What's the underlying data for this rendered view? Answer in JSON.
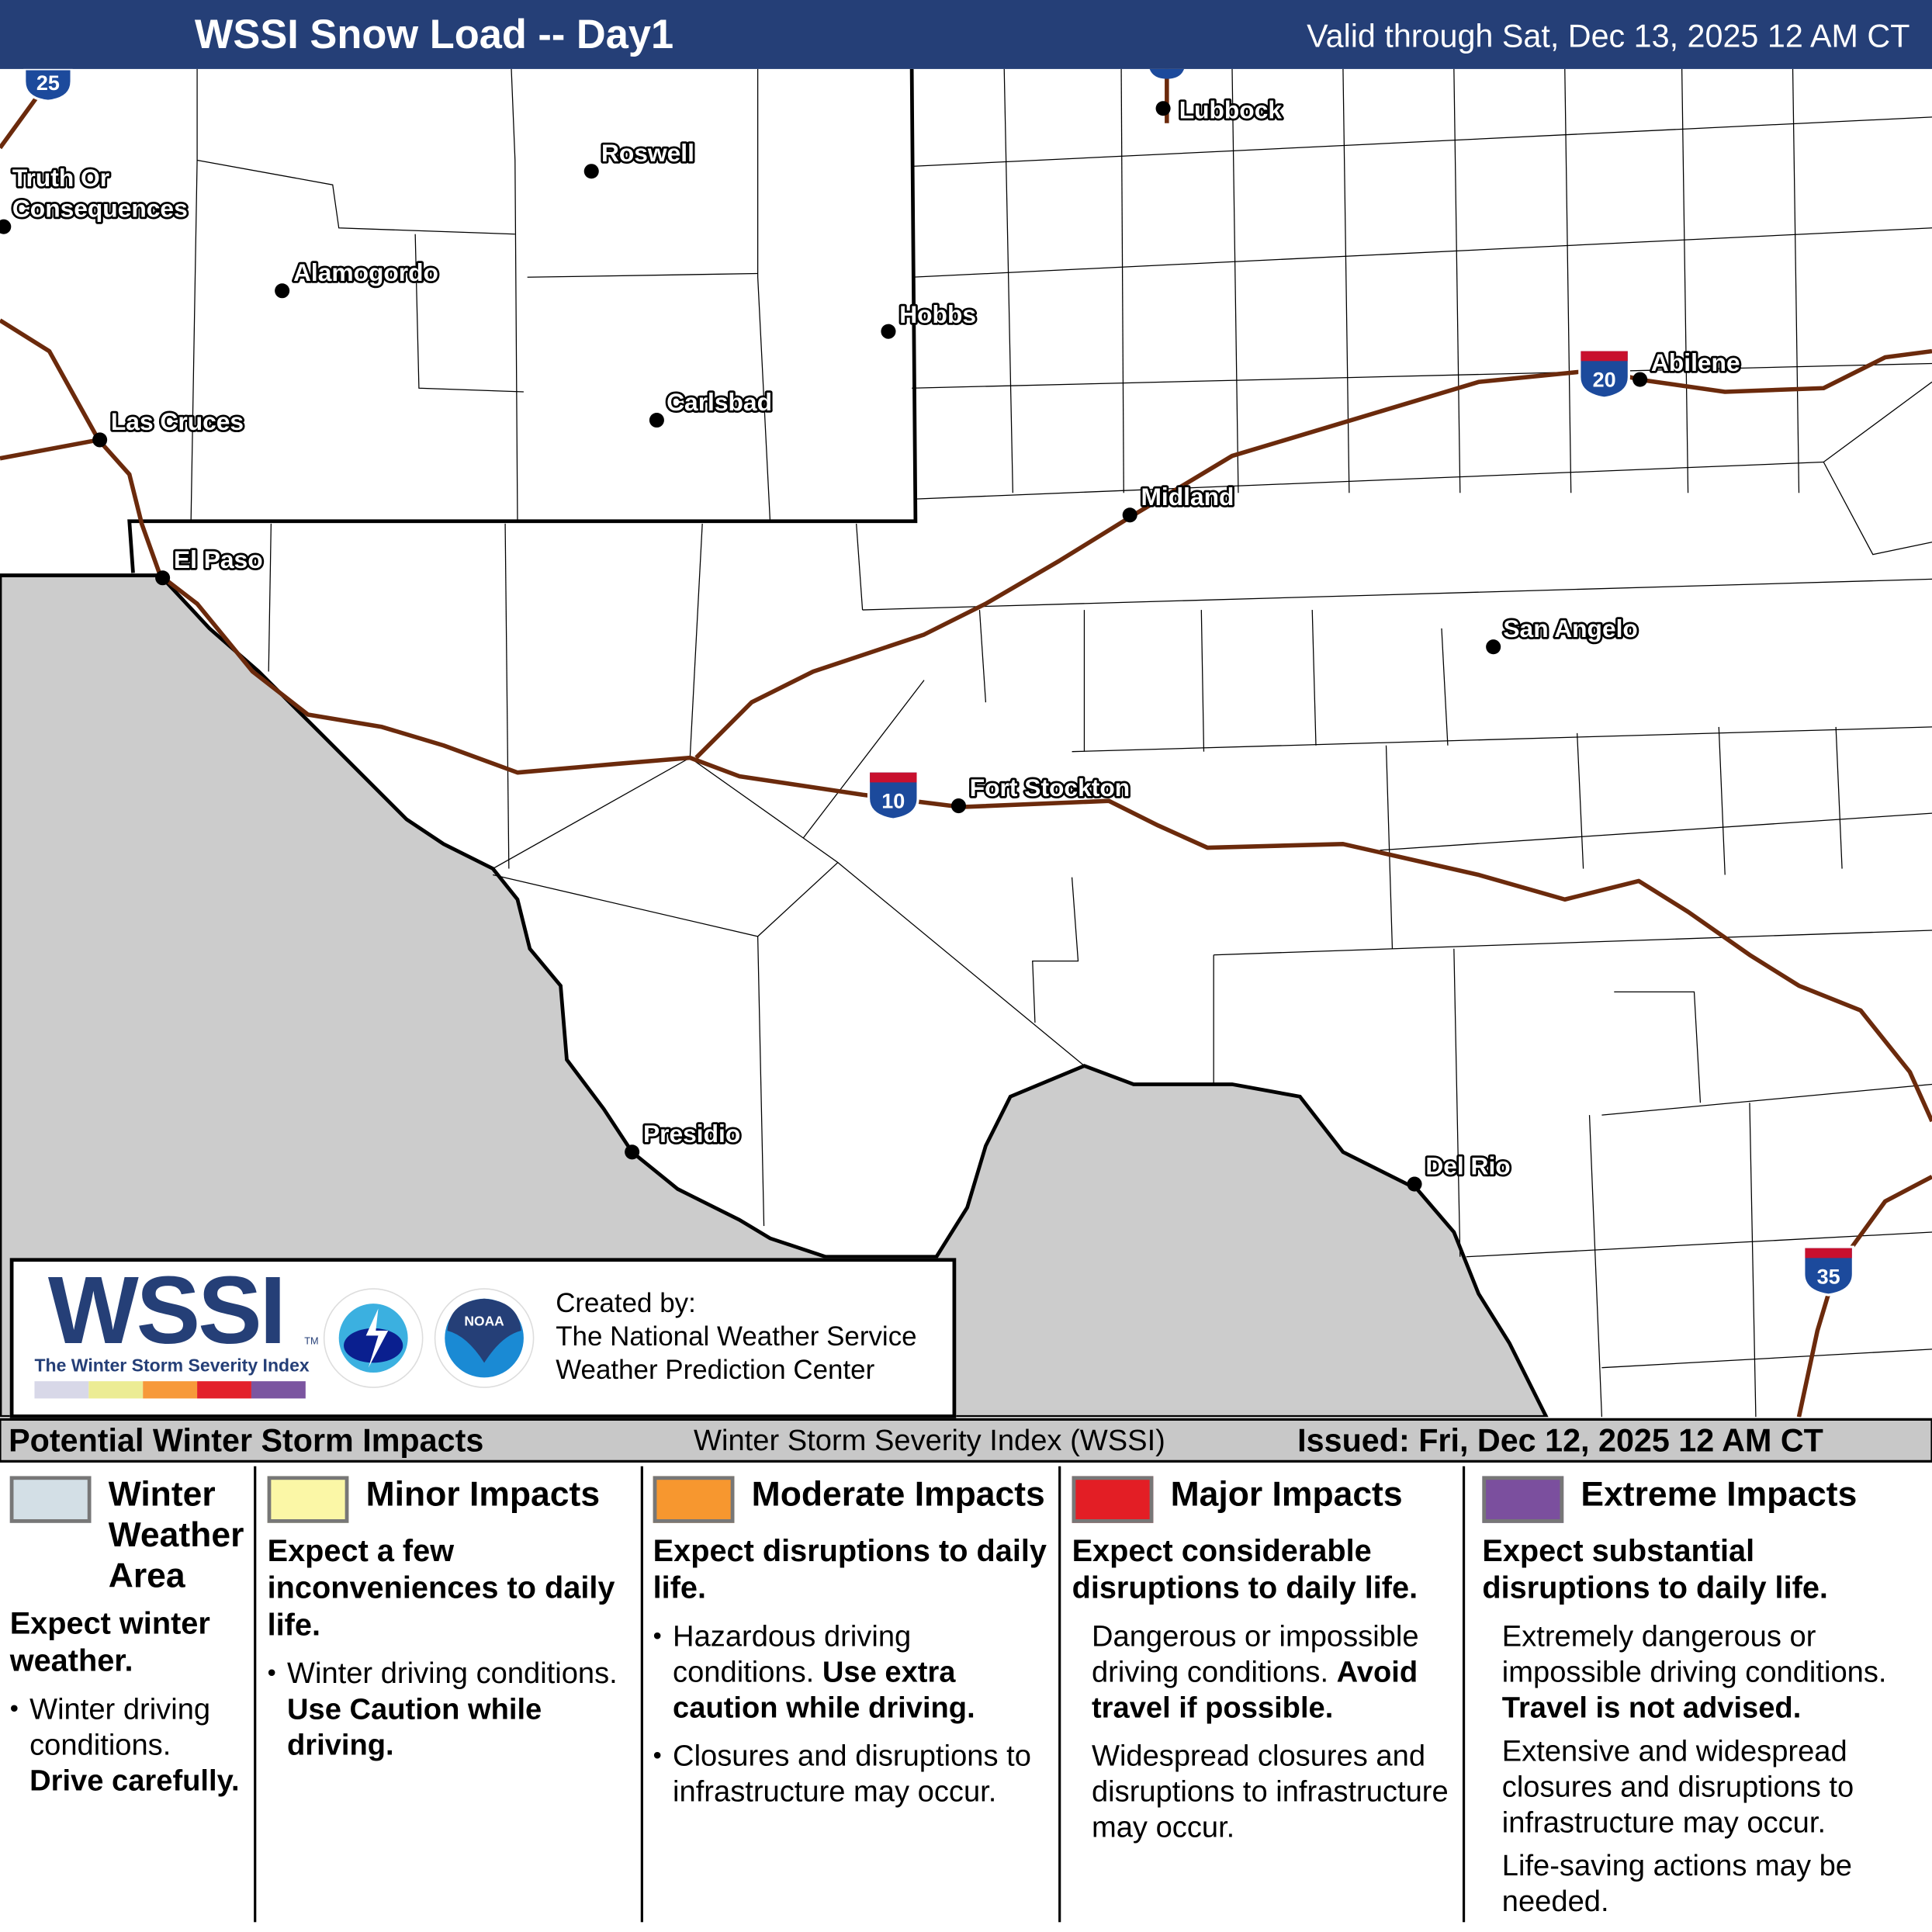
{
  "header": {
    "title": "WSSI Snow Load -- Day1",
    "valid": "Valid through Sat, Dec 13, 2025 12 AM CT",
    "bg": "#253f77"
  },
  "map": {
    "colors": {
      "mexico": "#cccccc",
      "interstate": "#6b2a0c"
    },
    "interstates": [
      "25",
      "20",
      "10",
      "35"
    ],
    "cities": [
      "Lubbock",
      "Roswell",
      "Truth Or",
      "Consequences",
      "Alamogordo",
      "Hobbs",
      "Carlsbad",
      "Las Cruces",
      "El Paso",
      "Midland",
      "Abilene",
      "San Angelo",
      "Fort Stockton",
      "Presidio",
      "Del Rio"
    ]
  },
  "logo": {
    "wssi": "WSSI",
    "tm": "TM",
    "subtitle": "The Winter Storm Severity Index",
    "bar_colors": [
      "#d8d8e8",
      "#ecec94",
      "#f7993a",
      "#e3212b",
      "#7b55a0"
    ],
    "nws": "NATIONAL WEATHER SERVICE",
    "noaa": "NOAA",
    "created": [
      "Created by:",
      "The National Weather Service",
      "Weather Prediction Center"
    ]
  },
  "subbar": {
    "left": "Potential Winter Storm Impacts",
    "center": "Winter Storm Severity Index (WSSI)",
    "right": "Issued: Fri, Dec 12, 2025 12 AM CT"
  },
  "legend": [
    {
      "color": "#d3dfe6",
      "title": "Winter Weather Area",
      "headline": "Expect winter weather.",
      "p1": "Winter driving conditions.",
      "p1b": "Drive carefully."
    },
    {
      "color": "#fbf7a6",
      "title": "Minor Impacts",
      "headline": "Expect a few inconveniences to daily life.",
      "p1": "Winter driving conditions.",
      "p1b": "Use Caution while driving."
    },
    {
      "color": "#f7972f",
      "title": "Moderate Impacts",
      "headline": "Expect disruptions to daily life.",
      "p1": "Hazardous driving conditions.",
      "p1b": "Use extra caution while driving.",
      "p2": "Closures and disruptions to infrastructure may occur."
    },
    {
      "color": "#e31e25",
      "title": "Major Impacts",
      "headline": "Expect considerable disruptions to daily life.",
      "p1": "Dangerous or impossible driving conditions.",
      "p1b": "Avoid travel if possible.",
      "p2": "Widespread closures and disruptions to infrastructure may occur."
    },
    {
      "color": "#7b4f9e",
      "title": "Extreme Impacts",
      "headline": "Expect substantial disruptions to daily life.",
      "p1": "Extremely dangerous or impossible driving conditions.",
      "p1b": "Travel is not advised.",
      "p2": "Extensive and widespread closures and disruptions to infrastructure may occur.",
      "p3": "Life-saving actions may be needed."
    }
  ]
}
